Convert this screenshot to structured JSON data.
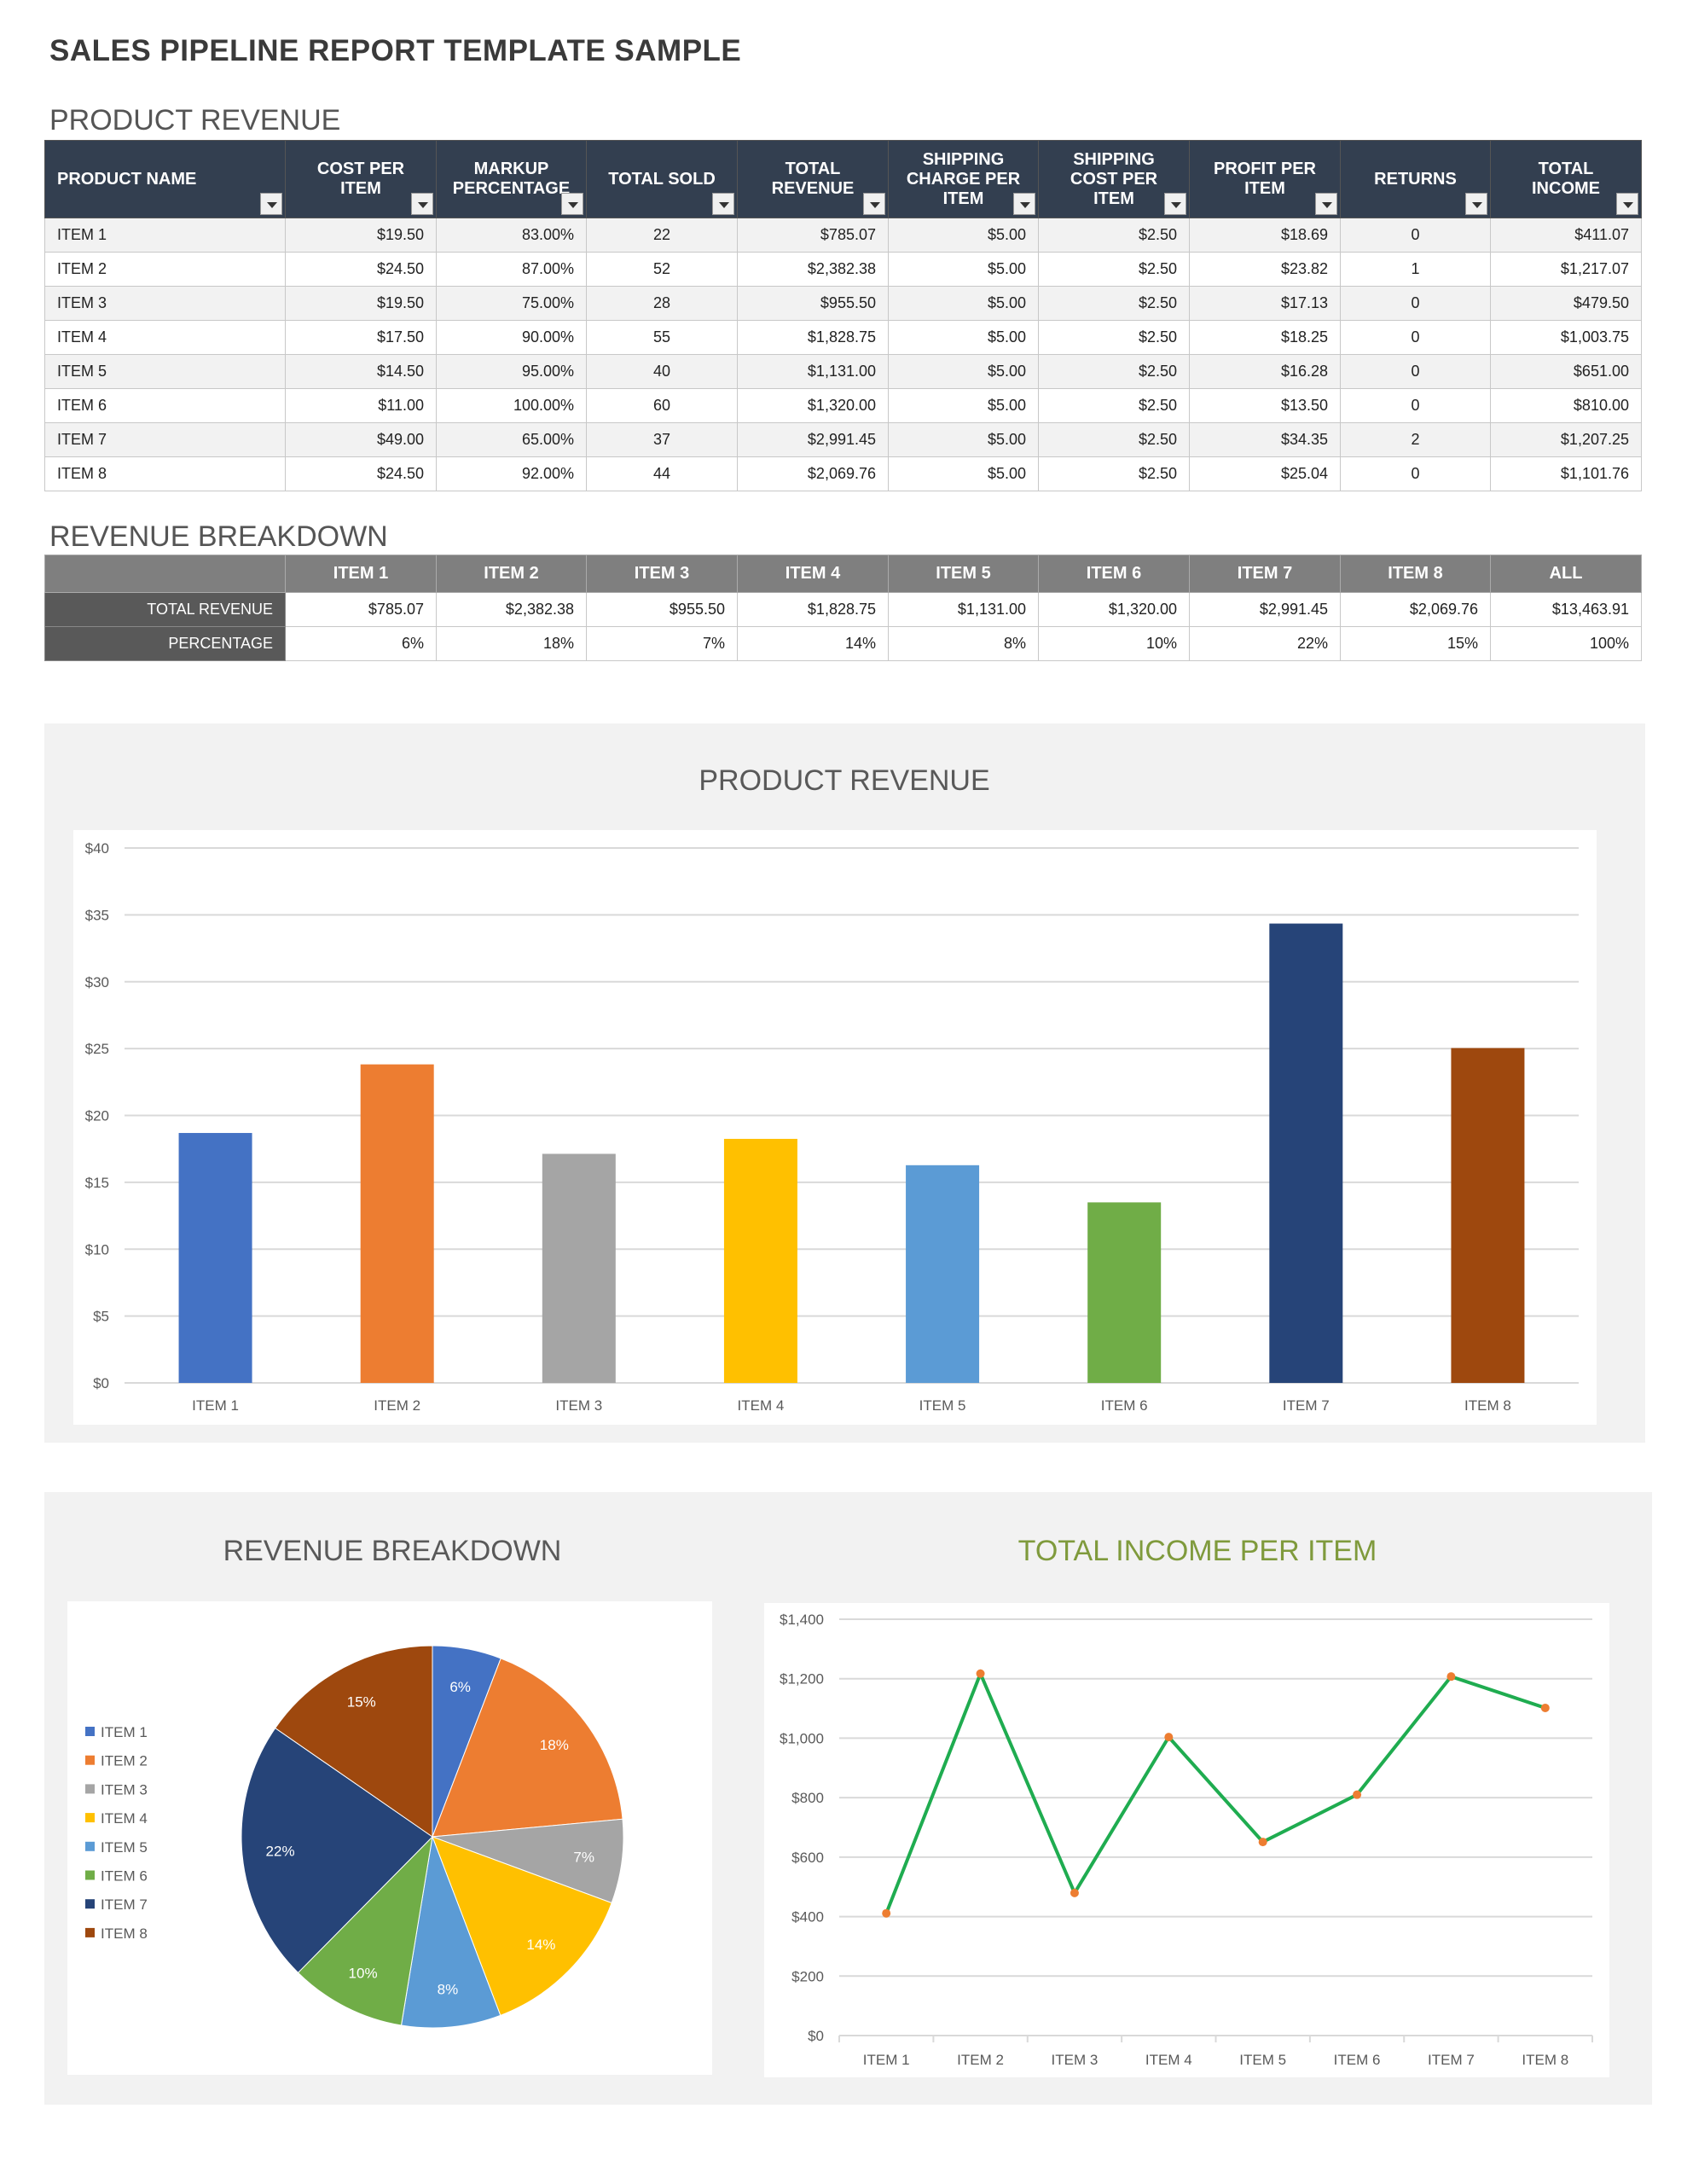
{
  "title": "SALES PIPELINE REPORT TEMPLATE SAMPLE",
  "product_revenue": {
    "heading": "PRODUCT REVENUE",
    "columns": [
      "PRODUCT NAME",
      "COST PER ITEM",
      "MARKUP PERCENTAGE",
      "TOTAL SOLD",
      "TOTAL REVENUE",
      "SHIPPING CHARGE PER ITEM",
      "SHIPPING COST PER ITEM",
      "PROFIT PER ITEM",
      "RETURNS",
      "TOTAL INCOME"
    ],
    "rows": [
      [
        "ITEM 1",
        "$19.50",
        "83.00%",
        "22",
        "$785.07",
        "$5.00",
        "$2.50",
        "$18.69",
        "0",
        "$411.07"
      ],
      [
        "ITEM 2",
        "$24.50",
        "87.00%",
        "52",
        "$2,382.38",
        "$5.00",
        "$2.50",
        "$23.82",
        "1",
        "$1,217.07"
      ],
      [
        "ITEM 3",
        "$19.50",
        "75.00%",
        "28",
        "$955.50",
        "$5.00",
        "$2.50",
        "$17.13",
        "0",
        "$479.50"
      ],
      [
        "ITEM 4",
        "$17.50",
        "90.00%",
        "55",
        "$1,828.75",
        "$5.00",
        "$2.50",
        "$18.25",
        "0",
        "$1,003.75"
      ],
      [
        "ITEM 5",
        "$14.50",
        "95.00%",
        "40",
        "$1,131.00",
        "$5.00",
        "$2.50",
        "$16.28",
        "0",
        "$651.00"
      ],
      [
        "ITEM 6",
        "$11.00",
        "100.00%",
        "60",
        "$1,320.00",
        "$5.00",
        "$2.50",
        "$13.50",
        "0",
        "$810.00"
      ],
      [
        "ITEM 7",
        "$49.00",
        "65.00%",
        "37",
        "$2,991.45",
        "$5.00",
        "$2.50",
        "$34.35",
        "2",
        "$1,207.25"
      ],
      [
        "ITEM 8",
        "$24.50",
        "92.00%",
        "44",
        "$2,069.76",
        "$5.00",
        "$2.50",
        "$25.04",
        "0",
        "$1,101.76"
      ]
    ]
  },
  "revenue_breakdown": {
    "heading": "REVENUE BREAKDOWN",
    "columns": [
      "",
      "ITEM 1",
      "ITEM 2",
      "ITEM 3",
      "ITEM 4",
      "ITEM 5",
      "ITEM 6",
      "ITEM 7",
      "ITEM 8",
      "ALL"
    ],
    "rows": [
      [
        "TOTAL REVENUE",
        "$785.07",
        "$2,382.38",
        "$955.50",
        "$1,828.75",
        "$1,131.00",
        "$1,320.00",
        "$2,991.45",
        "$2,069.76",
        "$13,463.91"
      ],
      [
        "PERCENTAGE",
        "6%",
        "18%",
        "7%",
        "14%",
        "8%",
        "10%",
        "22%",
        "15%",
        "100%"
      ]
    ]
  },
  "colors": {
    "header": "#333f50",
    "series": [
      "#4472c4",
      "#ed7d31",
      "#a5a5a5",
      "#ffc000",
      "#5b9bd5",
      "#70ad47",
      "#264478",
      "#9e480e"
    ],
    "line": "#1fac50",
    "marker": "#ed7d31",
    "line_title": "#7f9a3c"
  },
  "chart_data": [
    {
      "type": "bar",
      "title": "PRODUCT REVENUE",
      "categories": [
        "ITEM 1",
        "ITEM 2",
        "ITEM 3",
        "ITEM 4",
        "ITEM 5",
        "ITEM 6",
        "ITEM 7",
        "ITEM 8"
      ],
      "values": [
        18.69,
        23.82,
        17.13,
        18.25,
        16.28,
        13.5,
        34.35,
        25.04
      ],
      "ylim": [
        0,
        40
      ],
      "yticks": [
        "$0",
        "$5",
        "$10",
        "$15",
        "$20",
        "$25",
        "$30",
        "$35",
        "$40"
      ],
      "grid": true
    },
    {
      "type": "pie",
      "title": "REVENUE BREAKDOWN",
      "categories": [
        "ITEM 1",
        "ITEM 2",
        "ITEM 3",
        "ITEM 4",
        "ITEM 5",
        "ITEM 6",
        "ITEM 7",
        "ITEM 8"
      ],
      "values": [
        785.07,
        2382.38,
        955.5,
        1828.75,
        1131.0,
        1320.0,
        2991.45,
        2069.76
      ],
      "labels": [
        "6%",
        "18%",
        "7%",
        "14%",
        "8%",
        "10%",
        "22%",
        "15%"
      ],
      "legend": "left"
    },
    {
      "type": "line",
      "title": "TOTAL INCOME PER ITEM",
      "categories": [
        "ITEM 1",
        "ITEM 2",
        "ITEM 3",
        "ITEM 4",
        "ITEM 5",
        "ITEM 6",
        "ITEM 7",
        "ITEM 8"
      ],
      "values": [
        411.07,
        1217.07,
        479.5,
        1003.75,
        651.0,
        810.0,
        1207.25,
        1101.76
      ],
      "ylim": [
        0,
        1400
      ],
      "yticks": [
        "$0",
        "$200",
        "$400",
        "$600",
        "$800",
        "$1,000",
        "$1,200",
        "$1,400"
      ],
      "grid": true
    }
  ]
}
